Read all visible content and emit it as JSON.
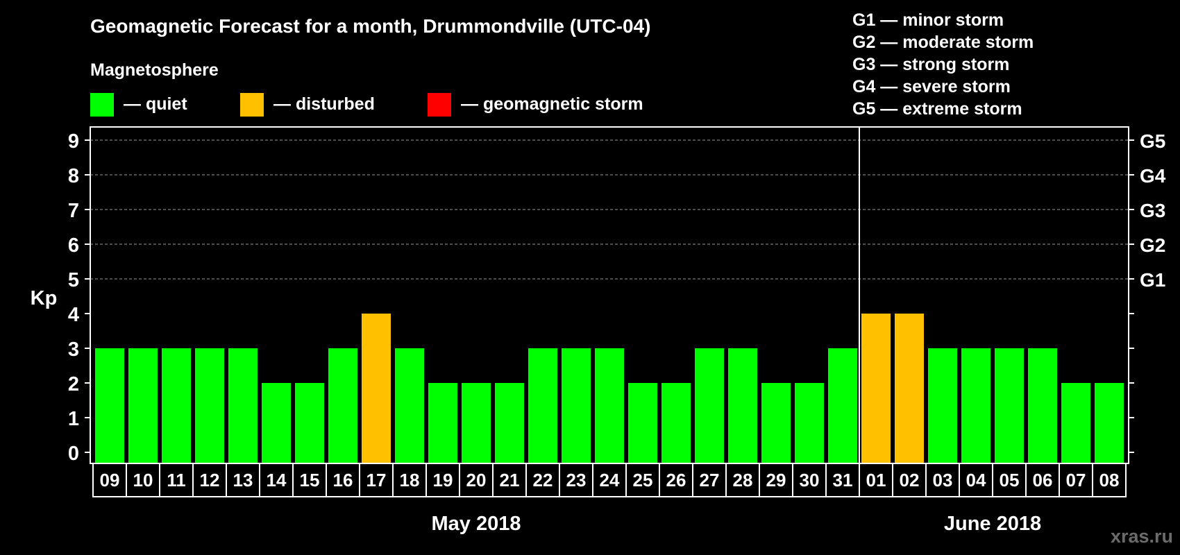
{
  "chart_data": {
    "type": "bar",
    "title": "Geomagnetic Forecast for a month, Drummondville (UTC-04)",
    "legend_heading": "Magnetosphere",
    "legend": [
      {
        "key": "quiet",
        "label": "— quiet",
        "color": "#00ff00"
      },
      {
        "key": "disturbed",
        "label": "— disturbed",
        "color": "#ffc000"
      },
      {
        "key": "storm",
        "label": "— geomagnetic storm",
        "color": "#ff0000"
      }
    ],
    "storm_scale": [
      "G1 — minor storm",
      "G2 — moderate storm",
      "G3 — strong storm",
      "G4 — severe storm",
      "G5 — extreme storm"
    ],
    "ylabel": "Kp",
    "ylim": [
      0,
      9
    ],
    "yticks": [
      0,
      1,
      2,
      3,
      4,
      5,
      6,
      7,
      8,
      9
    ],
    "right_axis_labels": [
      {
        "kp": 5,
        "label": "G1"
      },
      {
        "kp": 6,
        "label": "G2"
      },
      {
        "kp": 7,
        "label": "G3"
      },
      {
        "kp": 8,
        "label": "G4"
      },
      {
        "kp": 9,
        "label": "G5"
      }
    ],
    "grid": true,
    "categories": [
      "09",
      "10",
      "11",
      "12",
      "13",
      "14",
      "15",
      "16",
      "17",
      "18",
      "19",
      "20",
      "21",
      "22",
      "23",
      "24",
      "25",
      "26",
      "27",
      "28",
      "29",
      "30",
      "31",
      "01",
      "02",
      "03",
      "04",
      "05",
      "06",
      "07",
      "08"
    ],
    "values": [
      3,
      3,
      3,
      3,
      3,
      2,
      2,
      3,
      4,
      3,
      2,
      2,
      2,
      3,
      3,
      3,
      2,
      2,
      3,
      3,
      2,
      2,
      3,
      4,
      4,
      3,
      3,
      3,
      3,
      2,
      2
    ],
    "status": [
      "quiet",
      "quiet",
      "quiet",
      "quiet",
      "quiet",
      "quiet",
      "quiet",
      "quiet",
      "disturbed",
      "quiet",
      "quiet",
      "quiet",
      "quiet",
      "quiet",
      "quiet",
      "quiet",
      "quiet",
      "quiet",
      "quiet",
      "quiet",
      "quiet",
      "quiet",
      "quiet",
      "disturbed",
      "disturbed",
      "quiet",
      "quiet",
      "quiet",
      "quiet",
      "quiet",
      "quiet"
    ],
    "months": [
      {
        "label": "May 2018",
        "first_index": 0,
        "last_index": 22
      },
      {
        "label": "June 2018",
        "first_index": 23,
        "last_index": 30
      }
    ],
    "month_divider_after_index": 22
  },
  "watermark": "xras.ru"
}
